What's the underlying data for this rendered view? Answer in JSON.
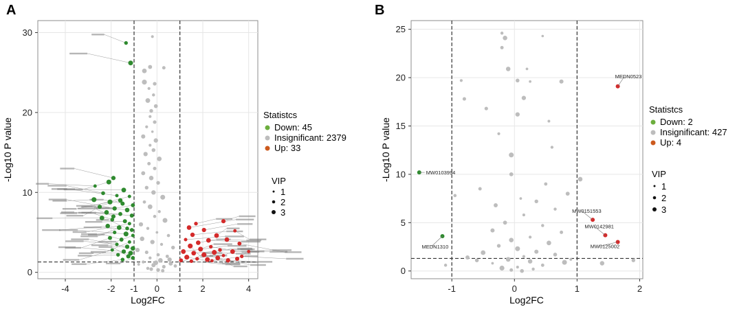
{
  "colors": {
    "down": "#2f8a2f",
    "insignificant": "#bdbdbd",
    "up": "#d42a2a",
    "up_legend": "#cc5a1e",
    "down_legend": "#6cae3e",
    "grid": "#e6e6e6",
    "frame": "#8c8c8c",
    "threshold": "#333333"
  },
  "chart_data": [
    {
      "panel": "A",
      "type": "scatter",
      "xlabel": "Log2FC",
      "ylabel": "-Log10 P value",
      "xlim": [
        -5.2,
        4.4
      ],
      "ylim": [
        -0.8,
        31.5
      ],
      "xticks": [
        -4,
        -2,
        -1,
        0,
        1,
        2,
        4
      ],
      "yticks": [
        0,
        10,
        20,
        30
      ],
      "thresholds": {
        "x": [
          -1,
          1
        ],
        "y": 1.3
      },
      "legend": {
        "title": "Statistcs",
        "entries": [
          "Down: 45",
          "Insignificant: 2379",
          "Up: 33"
        ],
        "size_title": "VIP",
        "size_entries": [
          "1",
          "2",
          "3"
        ]
      },
      "series": [
        {
          "name": "Down",
          "points": [
            [
              -1.35,
              28.7
            ],
            [
              -1.15,
              26.2
            ],
            [
              -1.9,
              11.8
            ],
            [
              -2.1,
              11.3
            ],
            [
              -2.7,
              10.8
            ],
            [
              -1.45,
              10.3
            ],
            [
              -2.35,
              9.9
            ],
            [
              -1.75,
              9.6
            ],
            [
              -1.2,
              9.5
            ],
            [
              -2.75,
              9.1
            ],
            [
              -2.05,
              8.8
            ],
            [
              -1.5,
              8.6
            ],
            [
              -1.05,
              8.4
            ],
            [
              -2.5,
              8.2
            ],
            [
              -1.85,
              8.0
            ],
            [
              -1.3,
              7.8
            ],
            [
              -2.2,
              7.5
            ],
            [
              -1.6,
              7.3
            ],
            [
              -1.1,
              7.1
            ],
            [
              -2.4,
              6.8
            ],
            [
              -1.95,
              6.6
            ],
            [
              -1.4,
              6.4
            ],
            [
              -1.2,
              6.1
            ],
            [
              -2.15,
              5.8
            ],
            [
              -1.65,
              5.6
            ],
            [
              -1.1,
              5.3
            ],
            [
              -1.85,
              5.0
            ],
            [
              -1.35,
              4.8
            ],
            [
              -1.05,
              4.6
            ],
            [
              -2.05,
              4.3
            ],
            [
              -1.55,
              4.1
            ],
            [
              -1.2,
              3.8
            ],
            [
              -1.75,
              3.5
            ],
            [
              -1.3,
              3.2
            ],
            [
              -1.05,
              3.0
            ],
            [
              -1.95,
              2.8
            ],
            [
              -1.45,
              2.6
            ],
            [
              -1.15,
              2.4
            ],
            [
              -1.7,
              2.2
            ],
            [
              -1.25,
              2.0
            ],
            [
              -1.05,
              1.8
            ],
            [
              -1.5,
              1.6
            ],
            [
              -1.9,
              7.0
            ],
            [
              -1.6,
              9.0
            ],
            [
              -1.3,
              5.5
            ]
          ]
        },
        {
          "name": "Insignificant",
          "points": [
            [
              -0.2,
              29.5
            ],
            [
              -0.55,
              25.2
            ],
            [
              -0.3,
              25.7
            ],
            [
              0.3,
              25.6
            ],
            [
              -0.55,
              23.8
            ],
            [
              -0.1,
              23.6
            ],
            [
              -0.35,
              23.0
            ],
            [
              -0.15,
              22.2
            ],
            [
              -0.4,
              21.5
            ],
            [
              -0.05,
              20.8
            ],
            [
              -0.25,
              20.2
            ],
            [
              -0.3,
              19.5
            ],
            [
              -0.1,
              18.8
            ],
            [
              -0.45,
              18.2
            ],
            [
              -0.2,
              17.6
            ],
            [
              -0.6,
              17.0
            ],
            [
              -0.05,
              16.5
            ],
            [
              -0.3,
              15.9
            ],
            [
              -0.15,
              15.3
            ],
            [
              -0.5,
              14.8
            ],
            [
              0.1,
              14.2
            ],
            [
              -0.35,
              13.6
            ],
            [
              -0.1,
              13.0
            ],
            [
              -0.6,
              12.4
            ],
            [
              -0.25,
              11.8
            ],
            [
              0.05,
              11.2
            ],
            [
              -0.45,
              10.6
            ],
            [
              -0.15,
              10.0
            ],
            [
              0.25,
              9.4
            ],
            [
              -0.55,
              8.8
            ],
            [
              -0.3,
              8.2
            ],
            [
              0.1,
              7.6
            ],
            [
              -0.1,
              7.0
            ],
            [
              0.35,
              6.5
            ],
            [
              -0.7,
              6.0
            ],
            [
              -0.4,
              5.5
            ],
            [
              0.0,
              5.0
            ],
            [
              0.5,
              4.6
            ],
            [
              -0.65,
              4.2
            ],
            [
              -0.2,
              3.8
            ],
            [
              0.2,
              3.5
            ],
            [
              0.7,
              3.1
            ],
            [
              -0.85,
              2.8
            ],
            [
              -0.45,
              2.5
            ],
            [
              0.05,
              2.2
            ],
            [
              0.45,
              2.0
            ],
            [
              -0.3,
              1.8
            ],
            [
              0.15,
              1.5
            ],
            [
              -0.6,
              1.3
            ],
            [
              0.6,
              1.1
            ],
            [
              -0.15,
              0.9
            ],
            [
              0.3,
              0.7
            ],
            [
              -0.4,
              0.5
            ],
            [
              0.05,
              0.3
            ],
            [
              0.8,
              0.8
            ],
            [
              -0.8,
              1.0
            ],
            [
              0.25,
              0.2
            ],
            [
              -0.25,
              0.4
            ],
            [
              0.55,
              1.6
            ],
            [
              -0.05,
              1.2
            ]
          ]
        },
        {
          "name": "Up",
          "points": [
            [
              1.4,
              5.6
            ],
            [
              1.7,
              6.1
            ],
            [
              1.55,
              4.7
            ],
            [
              2.05,
              5.3
            ],
            [
              1.25,
              4.1
            ],
            [
              1.8,
              3.7
            ],
            [
              2.25,
              4.0
            ],
            [
              2.9,
              6.4
            ],
            [
              2.6,
              4.6
            ],
            [
              3.4,
              5.2
            ],
            [
              3.05,
              4.1
            ],
            [
              3.6,
              3.6
            ],
            [
              1.45,
              3.3
            ],
            [
              1.9,
              2.9
            ],
            [
              2.35,
              3.2
            ],
            [
              2.75,
              2.8
            ],
            [
              1.15,
              2.6
            ],
            [
              1.6,
              2.4
            ],
            [
              2.05,
              2.2
            ],
            [
              2.5,
              2.5
            ],
            [
              2.9,
              2.1
            ],
            [
              3.3,
              2.6
            ],
            [
              3.7,
              2.0
            ],
            [
              1.3,
              1.9
            ],
            [
              1.75,
              1.7
            ],
            [
              2.2,
              1.6
            ],
            [
              2.65,
              1.8
            ],
            [
              3.1,
              1.5
            ],
            [
              3.5,
              1.7
            ],
            [
              1.05,
              1.5
            ],
            [
              1.5,
              1.4
            ],
            [
              2.4,
              1.45
            ],
            [
              4.0,
              2.6
            ]
          ]
        }
      ]
    },
    {
      "panel": "B",
      "type": "scatter",
      "xlabel": "Log2FC",
      "ylabel": "-Log10 P value",
      "xlim": [
        -1.65,
        2.05
      ],
      "ylim": [
        -0.8,
        25.9
      ],
      "xticks": [
        -1,
        0,
        1,
        2
      ],
      "yticks": [
        0,
        5,
        10,
        15,
        20,
        25
      ],
      "thresholds": {
        "x": [
          -1,
          1
        ],
        "y": 1.3
      },
      "legend": {
        "title": "Statistcs",
        "entries": [
          "Down: 2",
          "Insignificant: 427",
          "Up: 4"
        ],
        "size_title": "VIP",
        "size_entries": [
          "1",
          "2",
          "3"
        ]
      },
      "series": [
        {
          "name": "Down",
          "points": [
            [
              -1.52,
              10.2
            ],
            [
              -1.15,
              3.6
            ]
          ],
          "labels": [
            "MW0103994",
            "MEDN1310"
          ]
        },
        {
          "name": "Insignificant",
          "points": [
            [
              -0.2,
              24.6
            ],
            [
              0.45,
              24.3
            ],
            [
              -0.15,
              24.1
            ],
            [
              -0.2,
              23.1
            ],
            [
              0.2,
              20.9
            ],
            [
              -0.1,
              20.9
            ],
            [
              0.05,
              19.7
            ],
            [
              0.25,
              19.6
            ],
            [
              -0.85,
              19.7
            ],
            [
              0.75,
              19.6
            ],
            [
              -0.8,
              17.8
            ],
            [
              0.15,
              17.9
            ],
            [
              -0.25,
              14.2
            ],
            [
              -0.05,
              12.0
            ],
            [
              0.5,
              9.0
            ],
            [
              -0.55,
              8.5
            ],
            [
              0.85,
              8.0
            ],
            [
              -0.05,
              10.0
            ],
            [
              0.1,
              7.5
            ],
            [
              0.35,
              7.2
            ],
            [
              -0.3,
              6.8
            ],
            [
              0.65,
              6.4
            ],
            [
              0.15,
              5.8
            ],
            [
              -0.15,
              5.0
            ],
            [
              0.45,
              4.7
            ],
            [
              -0.35,
              4.2
            ],
            [
              0.75,
              4.0
            ],
            [
              0.25,
              3.5
            ],
            [
              -0.05,
              3.2
            ],
            [
              0.55,
              2.9
            ],
            [
              -0.25,
              2.6
            ],
            [
              0.05,
              2.3
            ],
            [
              0.35,
              2.0
            ],
            [
              -0.5,
              1.9
            ],
            [
              0.65,
              1.7
            ],
            [
              0.15,
              1.5
            ],
            [
              -0.1,
              1.2
            ],
            [
              0.25,
              1.0
            ],
            [
              -0.35,
              0.8
            ],
            [
              0.45,
              0.6
            ],
            [
              0.05,
              0.4
            ],
            [
              -0.2,
              0.3
            ],
            [
              0.3,
              0.2
            ],
            [
              -0.05,
              0.1
            ],
            [
              0.12,
              0.0
            ],
            [
              0.9,
              1.2
            ],
            [
              -0.75,
              1.4
            ],
            [
              -0.6,
              1.1
            ],
            [
              0.8,
              0.9
            ],
            [
              -1.1,
              0.6
            ],
            [
              1.4,
              0.8
            ],
            [
              1.9,
              1.1
            ],
            [
              1.05,
              9.5
            ],
            [
              -0.95,
              7.8
            ],
            [
              0.55,
              15.5
            ],
            [
              -0.45,
              16.8
            ],
            [
              0.05,
              16.2
            ],
            [
              0.6,
              12.8
            ]
          ]
        },
        {
          "name": "Up",
          "points": [
            [
              1.65,
              19.1
            ],
            [
              1.25,
              5.3
            ],
            [
              1.45,
              3.7
            ],
            [
              1.65,
              3.0
            ]
          ],
          "labels": [
            "MEDN0523",
            "MW0151553",
            "MW0142981",
            "MW0125002"
          ]
        }
      ]
    }
  ],
  "labels": {
    "panel_a": "A",
    "panel_b": "B"
  }
}
